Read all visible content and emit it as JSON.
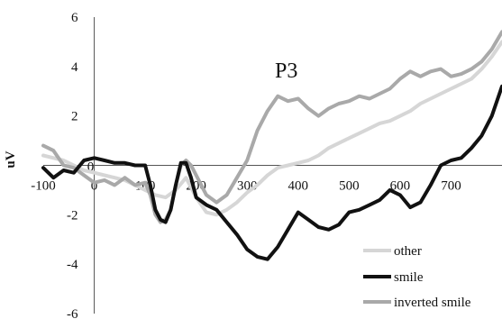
{
  "chart_data": {
    "type": "line",
    "title": "P3",
    "ylabel": "uV",
    "xlabel": "",
    "xlim": [
      -100,
      800
    ],
    "ylim": [
      -6,
      6
    ],
    "x_ticks": [
      -100,
      0,
      100,
      200,
      300,
      400,
      500,
      600,
      700
    ],
    "y_ticks": [
      -6,
      -4,
      -2,
      0,
      2,
      4,
      6
    ],
    "tick_labels_x": [
      "-100",
      "0",
      "100",
      "200",
      "300",
      "400",
      "500",
      "600",
      "700"
    ],
    "tick_labels_y": [
      "-6",
      "-4",
      "-2",
      "0",
      "2",
      "4",
      "6"
    ],
    "grid": false,
    "legend_position": "bottom-right",
    "series": [
      {
        "name": "other",
        "color": "#d6d6d6",
        "x": [
          -100,
          -80,
          -60,
          -40,
          -20,
          0,
          20,
          40,
          60,
          80,
          100,
          120,
          140,
          160,
          180,
          200,
          220,
          240,
          260,
          280,
          300,
          320,
          340,
          360,
          380,
          400,
          420,
          440,
          460,
          480,
          500,
          520,
          540,
          560,
          580,
          600,
          620,
          640,
          660,
          680,
          700,
          720,
          740,
          760,
          780,
          800
        ],
        "y": [
          0.4,
          0.3,
          0.2,
          0.0,
          -0.2,
          -0.3,
          -0.4,
          -0.5,
          -0.6,
          -0.8,
          -1.0,
          -1.2,
          -1.3,
          -1.0,
          -0.5,
          -1.3,
          -1.9,
          -2.0,
          -1.8,
          -1.5,
          -1.1,
          -0.8,
          -0.4,
          -0.1,
          0.0,
          0.1,
          0.2,
          0.4,
          0.7,
          0.9,
          1.1,
          1.3,
          1.5,
          1.7,
          1.8,
          2.0,
          2.2,
          2.5,
          2.7,
          2.9,
          3.1,
          3.3,
          3.5,
          3.9,
          4.4,
          5.0
        ]
      },
      {
        "name": "smile",
        "color": "#111111",
        "x": [
          -100,
          -80,
          -60,
          -40,
          -20,
          0,
          20,
          40,
          60,
          80,
          100,
          110,
          120,
          130,
          140,
          150,
          160,
          170,
          180,
          190,
          200,
          220,
          240,
          260,
          280,
          300,
          320,
          340,
          360,
          380,
          400,
          420,
          440,
          460,
          480,
          500,
          520,
          540,
          560,
          580,
          600,
          620,
          640,
          660,
          680,
          700,
          720,
          740,
          760,
          780,
          800
        ],
        "y": [
          -0.1,
          -0.5,
          -0.2,
          -0.3,
          0.2,
          0.3,
          0.2,
          0.1,
          0.1,
          0.0,
          0.0,
          -0.8,
          -1.8,
          -2.2,
          -2.3,
          -1.8,
          -0.8,
          0.1,
          0.1,
          -0.5,
          -1.3,
          -1.6,
          -1.8,
          -2.3,
          -2.8,
          -3.4,
          -3.7,
          -3.8,
          -3.3,
          -2.6,
          -1.9,
          -2.2,
          -2.5,
          -2.6,
          -2.4,
          -1.9,
          -1.8,
          -1.6,
          -1.4,
          -1.0,
          -1.2,
          -1.7,
          -1.5,
          -0.8,
          0.0,
          0.2,
          0.3,
          0.7,
          1.2,
          2.0,
          3.2
        ]
      },
      {
        "name": "inverted smile",
        "color": "#a9a9a9",
        "x": [
          -100,
          -80,
          -60,
          -40,
          -20,
          0,
          20,
          40,
          60,
          80,
          100,
          110,
          120,
          130,
          140,
          150,
          160,
          170,
          180,
          190,
          200,
          210,
          220,
          240,
          260,
          280,
          300,
          320,
          340,
          360,
          380,
          400,
          420,
          440,
          460,
          480,
          500,
          520,
          540,
          560,
          580,
          600,
          620,
          640,
          660,
          680,
          700,
          720,
          740,
          760,
          780,
          800
        ],
        "y": [
          0.8,
          0.6,
          0.0,
          -0.1,
          -0.4,
          -0.7,
          -0.6,
          -0.8,
          -0.5,
          -0.8,
          -0.7,
          -1.2,
          -2.0,
          -2.3,
          -2.2,
          -1.8,
          -0.8,
          0.0,
          0.2,
          0.0,
          -0.4,
          -0.8,
          -1.2,
          -1.5,
          -1.2,
          -0.5,
          0.2,
          1.4,
          2.2,
          2.8,
          2.6,
          2.7,
          2.3,
          2.0,
          2.3,
          2.5,
          2.6,
          2.8,
          2.7,
          2.9,
          3.1,
          3.5,
          3.8,
          3.6,
          3.8,
          3.9,
          3.6,
          3.7,
          3.9,
          4.2,
          4.7,
          5.4
        ]
      }
    ]
  }
}
